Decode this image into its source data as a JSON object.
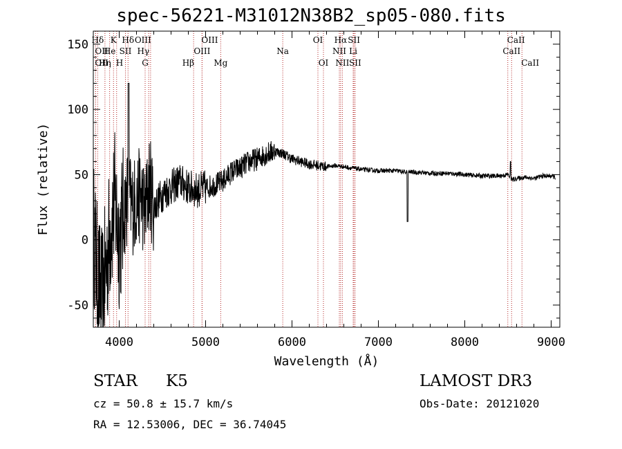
{
  "chart_data": {
    "type": "line",
    "title": "spec-56221-M31012N38B2_sp05-080.fits",
    "xlabel": "Wavelength (Å)",
    "ylabel": "Flux (relative)",
    "xlim": [
      3700,
      9100
    ],
    "ylim": [
      -67,
      160
    ],
    "xticks": [
      4000,
      5000,
      6000,
      7000,
      8000,
      9000
    ],
    "yticks": [
      -50,
      0,
      50,
      100,
      150
    ],
    "line_color": "#000000",
    "marker_color": "#b22222",
    "series": [
      {
        "name": "flux",
        "x": [
          3700,
          3750,
          3800,
          3850,
          3900,
          3950,
          4000,
          4050,
          4100,
          4150,
          4200,
          4250,
          4300,
          4350,
          4400,
          4500,
          4600,
          4700,
          4800,
          4900,
          5000,
          5100,
          5200,
          5300,
          5400,
          5500,
          5600,
          5700,
          5800,
          5900,
          6000,
          6100,
          6200,
          6300,
          6400,
          6500,
          6600,
          6700,
          6800,
          7000,
          7200,
          7300,
          7400,
          7600,
          7800,
          8000,
          8200,
          8400,
          8500,
          8550,
          8600,
          8700,
          8800,
          8900,
          9000,
          9050
        ],
        "y": [
          10,
          -30,
          -45,
          -20,
          10,
          30,
          0,
          20,
          35,
          25,
          30,
          35,
          20,
          45,
          25,
          35,
          40,
          45,
          40,
          38,
          40,
          42,
          45,
          52,
          55,
          60,
          62,
          66,
          68,
          66,
          62,
          60,
          58,
          57,
          56,
          57,
          56,
          55,
          54,
          53,
          53,
          52,
          52,
          51,
          51,
          50,
          49,
          49,
          50,
          46,
          47,
          48,
          47,
          49,
          49,
          48
        ]
      }
    ],
    "lines": [
      {
        "label": "Hδ",
        "x": 3751,
        "row": 1,
        "anchor": "mid"
      },
      {
        "label": "K",
        "x": 3934,
        "row": 1,
        "anchor": "mid"
      },
      {
        "label": "Hδ",
        "x": 4102,
        "row": 1,
        "anchor": "mid"
      },
      {
        "label": "OIII",
        "x": 4363,
        "row": 1,
        "anchor": "end"
      },
      {
        "label": "OIII",
        "x": 4959,
        "row": 1,
        "anchor": "start"
      },
      {
        "label": "OI",
        "x": 6300,
        "row": 1,
        "anchor": "mid"
      },
      {
        "label": "Hα",
        "x": 6563,
        "row": 1,
        "anchor": "mid"
      },
      {
        "label": "SII",
        "x": 6717,
        "row": 1,
        "anchor": "mid"
      },
      {
        "label": "CaII",
        "x": 8498,
        "row": 1,
        "anchor": "start"
      },
      {
        "label": "OII",
        "x": 3727,
        "row": 2,
        "anchor": "start"
      },
      {
        "label": "He",
        "x": 3889,
        "row": 2,
        "anchor": "mid"
      },
      {
        "label": "SII",
        "x": 4072,
        "row": 2,
        "anchor": "mid"
      },
      {
        "label": "Hγ",
        "x": 4341,
        "row": 2,
        "anchor": "end"
      },
      {
        "label": "OIII",
        "x": 4959,
        "row": 2,
        "anchor": "mid"
      },
      {
        "label": "Na",
        "x": 5893,
        "row": 2,
        "anchor": "mid"
      },
      {
        "label": "NII",
        "x": 6548,
        "row": 2,
        "anchor": "mid"
      },
      {
        "label": "Li",
        "x": 6708,
        "row": 2,
        "anchor": "mid"
      },
      {
        "label": "CaII",
        "x": 8542,
        "row": 2,
        "anchor": "mid"
      },
      {
        "label": "OII",
        "x": 3727,
        "row": 3,
        "anchor": "start"
      },
      {
        "label": "Hη",
        "x": 3835,
        "row": 3,
        "anchor": "mid"
      },
      {
        "label": "H",
        "x": 3970,
        "row": 3,
        "anchor": "start"
      },
      {
        "label": "G",
        "x": 4300,
        "row": 3,
        "anchor": "mid"
      },
      {
        "label": "Hβ",
        "x": 4861,
        "row": 3,
        "anchor": "end"
      },
      {
        "label": "Mg",
        "x": 5175,
        "row": 3,
        "anchor": "mid"
      },
      {
        "label": "OI",
        "x": 6364,
        "row": 3,
        "anchor": "mid"
      },
      {
        "label": "NII",
        "x": 6583,
        "row": 3,
        "anchor": "mid"
      },
      {
        "label": "SII",
        "x": 6731,
        "row": 3,
        "anchor": "mid"
      },
      {
        "label": "CaII",
        "x": 8662,
        "row": 3,
        "anchor": "start"
      }
    ]
  },
  "info": {
    "object_class": "STAR",
    "subclass": "K5",
    "survey": "LAMOST DR3",
    "cz": "cz = 50.8 ± 15.7 km/s",
    "obs_date": "Obs-Date: 20121020",
    "coords": "RA =  12.53006, DEC =  36.74045"
  }
}
